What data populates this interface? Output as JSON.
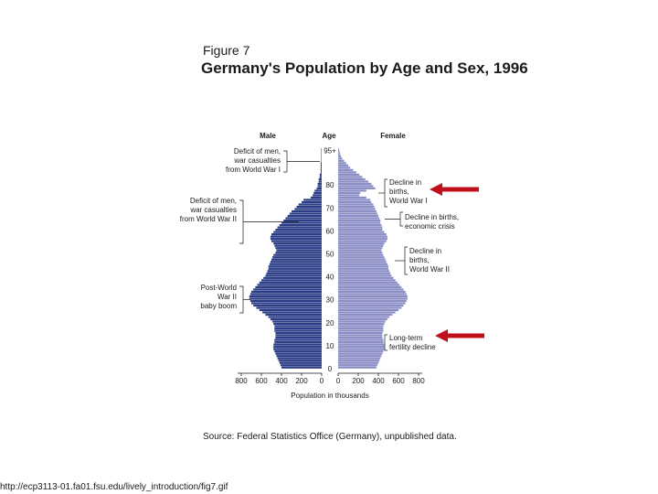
{
  "figure_label": "Figure 7",
  "title": "Germany's Population by Age and Sex, 1996",
  "headers": {
    "male": "Male",
    "age": "Age",
    "female": "Female"
  },
  "axis_label": "Population in thousands",
  "source": "Source: Federal Statistics Office (Germany), unpublished data.",
  "url": "http://ecp3113-01.fa01.fsu.edu/lively_introduction/fig7.gif",
  "colors": {
    "male": "#2b3d86",
    "female": "#8c8fc6",
    "arrow": "#c0101c"
  },
  "chart_data": {
    "type": "bar",
    "orientation": "horizontal-pyramid",
    "title": "Germany's Population by Age and Sex, 1996",
    "xlabel": "Population in thousands",
    "ylabel": "Age",
    "xlim": [
      0,
      800
    ],
    "x_ticks": [
      800,
      600,
      400,
      200,
      0
    ],
    "y_tick_labels": [
      "0",
      "10",
      "20",
      "30",
      "40",
      "50",
      "60",
      "70",
      "80",
      "95+"
    ],
    "ages": [
      0,
      1,
      2,
      3,
      4,
      5,
      6,
      7,
      8,
      9,
      10,
      11,
      12,
      13,
      14,
      15,
      16,
      17,
      18,
      19,
      20,
      21,
      22,
      23,
      24,
      25,
      26,
      27,
      28,
      29,
      30,
      31,
      32,
      33,
      34,
      35,
      36,
      37,
      38,
      39,
      40,
      41,
      42,
      43,
      44,
      45,
      46,
      47,
      48,
      49,
      50,
      51,
      52,
      53,
      54,
      55,
      56,
      57,
      58,
      59,
      60,
      61,
      62,
      63,
      64,
      65,
      66,
      67,
      68,
      69,
      70,
      71,
      72,
      73,
      74,
      75,
      76,
      77,
      78,
      79,
      80,
      81,
      82,
      83,
      84,
      85,
      86,
      87,
      88,
      89,
      90,
      91,
      92,
      93,
      94,
      "95+"
    ],
    "series": [
      {
        "name": "Male",
        "values": [
          400,
          410,
          420,
          430,
          440,
          450,
          460,
          470,
          480,
          480,
          480,
          470,
          470,
          460,
          460,
          460,
          470,
          470,
          470,
          480,
          490,
          510,
          530,
          560,
          590,
          620,
          650,
          680,
          700,
          710,
          720,
          720,
          710,
          700,
          680,
          660,
          640,
          620,
          600,
          580,
          560,
          550,
          540,
          530,
          530,
          520,
          510,
          500,
          490,
          480,
          460,
          450,
          460,
          470,
          480,
          500,
          510,
          510,
          500,
          480,
          460,
          440,
          420,
          400,
          380,
          360,
          340,
          320,
          300,
          270,
          250,
          230,
          200,
          180,
          110,
          90,
          80,
          70,
          50,
          40,
          40,
          30,
          30,
          20,
          20,
          10,
          10,
          10,
          10,
          10,
          5,
          5,
          5,
          5,
          5,
          5
        ]
      },
      {
        "name": "Female",
        "values": [
          380,
          390,
          400,
          410,
          420,
          430,
          440,
          450,
          460,
          460,
          460,
          450,
          450,
          440,
          440,
          440,
          450,
          450,
          450,
          460,
          470,
          490,
          510,
          540,
          570,
          600,
          630,
          650,
          670,
          680,
          690,
          690,
          680,
          670,
          650,
          630,
          610,
          590,
          570,
          550,
          530,
          520,
          510,
          500,
          500,
          490,
          480,
          470,
          460,
          450,
          440,
          430,
          440,
          450,
          460,
          480,
          490,
          490,
          480,
          460,
          440,
          440,
          430,
          420,
          420,
          410,
          400,
          390,
          380,
          370,
          360,
          350,
          330,
          320,
          280,
          210,
          220,
          280,
          370,
          350,
          330,
          300,
          270,
          240,
          210,
          180,
          150,
          120,
          100,
          80,
          60,
          40,
          30,
          20,
          15,
          10
        ]
      }
    ],
    "annotations": {
      "left": [
        [
          "Deficit of men,",
          "war casualties",
          "from World War I"
        ],
        [
          "Deficit of men,",
          "war casualties",
          "from World War II"
        ],
        [
          "Post-World",
          "War II",
          "baby boom"
        ]
      ],
      "right": [
        [
          "Decline in",
          "births,",
          "World War I"
        ],
        [
          "Decline in births,",
          "economic crisis"
        ],
        [
          "Decline in",
          "births,",
          "World War II"
        ],
        [
          "Long-term",
          "fertility decline"
        ]
      ]
    }
  }
}
